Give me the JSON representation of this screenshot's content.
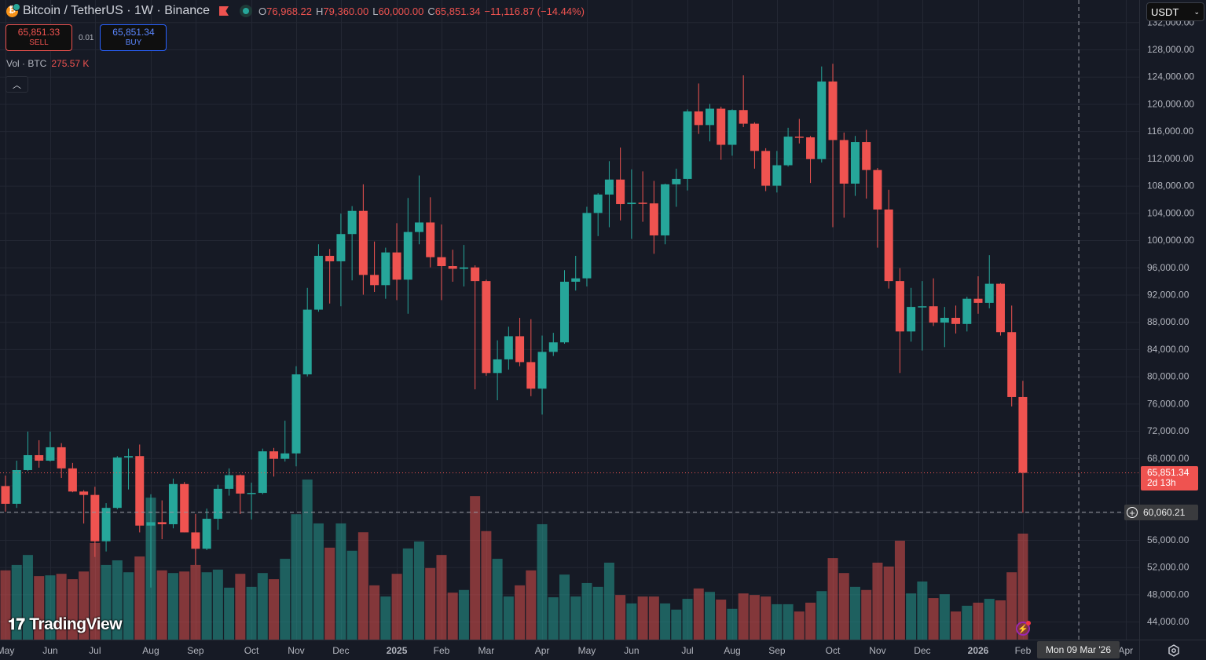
{
  "header": {
    "title": "Bitcoin / TetherUS · 1W · Binance",
    "open_key": "O",
    "open": "76,968.22",
    "high_key": "H",
    "high": "79,360.00",
    "low_key": "L",
    "low": "60,000.00",
    "close_key": "C",
    "close": "65,851.34",
    "change": "−11,116.87 (−14.44%)"
  },
  "trade": {
    "sell_price": "65,851.33",
    "sell_label": "SELL",
    "quantity": "0.01",
    "buy_price": "65,851.34",
    "buy_label": "BUY"
  },
  "volume_legend": {
    "label": "Vol · BTC",
    "value": "275.57 K"
  },
  "currency_select": {
    "value": "USDT"
  },
  "logo": {
    "text": "TradingView"
  },
  "price_labels": {
    "last_price": "65,851.34",
    "countdown": "2d 13h",
    "crosshair_price": "60,060.21",
    "crosshair_date": "Mon 09 Mar '26"
  },
  "colors": {
    "up": "#26a69a",
    "down": "#ef5350",
    "background": "#161a25",
    "grid": "#232733"
  },
  "chart_data": {
    "type": "candlestick",
    "title": "Bitcoin / TetherUS · 1W · Binance",
    "interval": "1W",
    "ylim": [
      42000,
      133000
    ],
    "grid": true,
    "price_ticks": [
      "132,000.00",
      "128,000.00",
      "124,000.00",
      "120,000.00",
      "116,000.00",
      "112,000.00",
      "108,000.00",
      "104,000.00",
      "100,000.00",
      "96,000.00",
      "92,000.00",
      "88,000.00",
      "84,000.00",
      "80,000.00",
      "76,000.00",
      "72,000.00",
      "68,000.00",
      "64,000.00",
      "60,000.00",
      "56,000.00",
      "52,000.00",
      "48,000.00",
      "44,000.00"
    ],
    "time_ticks": [
      {
        "label": "May",
        "index": 0
      },
      {
        "label": "Jun",
        "index": 4
      },
      {
        "label": "Jul",
        "index": 8
      },
      {
        "label": "Aug",
        "index": 13
      },
      {
        "label": "Sep",
        "index": 17
      },
      {
        "label": "Oct",
        "index": 22
      },
      {
        "label": "Nov",
        "index": 26
      },
      {
        "label": "Dec",
        "index": 30
      },
      {
        "label": "2025",
        "index": 35,
        "bold": true
      },
      {
        "label": "Feb",
        "index": 39
      },
      {
        "label": "Mar",
        "index": 43
      },
      {
        "label": "Apr",
        "index": 48
      },
      {
        "label": "May",
        "index": 52
      },
      {
        "label": "Jun",
        "index": 56
      },
      {
        "label": "Jul",
        "index": 61
      },
      {
        "label": "Aug",
        "index": 65
      },
      {
        "label": "Sep",
        "index": 69
      },
      {
        "label": "Oct",
        "index": 74
      },
      {
        "label": "Nov",
        "index": 78
      },
      {
        "label": "Dec",
        "index": 82
      },
      {
        "label": "2026",
        "index": 87,
        "bold": true
      },
      {
        "label": "Feb",
        "index": 91
      },
      {
        "label": "Apr",
        "index": 100.2
      }
    ],
    "crosshair": {
      "index": 96,
      "price": 60060.21
    },
    "last_price": 65851.34,
    "columns": [
      "open",
      "high",
      "low",
      "close",
      "volume_k_btc"
    ],
    "candles": [
      [
        63900,
        65440,
        60140,
        61300,
        180
      ],
      [
        61300,
        67630,
        60700,
        66250,
        194
      ],
      [
        66250,
        71900,
        66100,
        68440,
        220
      ],
      [
        68440,
        70630,
        66600,
        67630,
        165
      ],
      [
        67630,
        71900,
        67500,
        69600,
        167
      ],
      [
        69600,
        70200,
        65100,
        66500,
        171
      ],
      [
        66500,
        67300,
        63000,
        63100,
        157
      ],
      [
        63100,
        63300,
        58400,
        62600,
        177
      ],
      [
        62600,
        63800,
        53500,
        55800,
        251
      ],
      [
        55800,
        61400,
        54300,
        60700,
        194
      ],
      [
        60700,
        68300,
        60500,
        68100,
        206
      ],
      [
        68100,
        69400,
        63400,
        68300,
        175
      ],
      [
        68300,
        70000,
        57100,
        58100,
        216
      ],
      [
        58100,
        62700,
        49000,
        58600,
        369
      ],
      [
        58600,
        61800,
        56100,
        58300,
        180
      ],
      [
        58300,
        65000,
        57700,
        64200,
        173
      ],
      [
        64200,
        64500,
        57100,
        57100,
        177
      ],
      [
        57100,
        59800,
        52300,
        54700,
        194
      ],
      [
        54700,
        60600,
        54500,
        59100,
        175
      ],
      [
        59100,
        64100,
        57500,
        63500,
        182
      ],
      [
        63500,
        66500,
        62500,
        65500,
        135
      ],
      [
        65500,
        65600,
        59800,
        62800,
        171
      ],
      [
        62800,
        64400,
        59000,
        62900,
        137
      ],
      [
        62900,
        69400,
        62700,
        69000,
        173
      ],
      [
        69000,
        69500,
        65300,
        67900,
        157
      ],
      [
        67900,
        73500,
        67500,
        68700,
        210
      ],
      [
        68700,
        81500,
        66800,
        80300,
        326
      ],
      [
        80300,
        93000,
        80000,
        89800,
        416
      ],
      [
        89800,
        99400,
        89500,
        97700,
        302
      ],
      [
        97700,
        98700,
        90700,
        96900,
        239
      ],
      [
        96900,
        103900,
        90300,
        100900,
        302
      ],
      [
        100900,
        105000,
        94100,
        104300,
        231
      ],
      [
        104300,
        108200,
        92000,
        94900,
        279
      ],
      [
        94900,
        99800,
        92400,
        93400,
        141
      ],
      [
        93400,
        98900,
        91400,
        98200,
        112
      ],
      [
        98200,
        102500,
        91200,
        94200,
        171
      ],
      [
        94200,
        106200,
        89200,
        101200,
        237
      ],
      [
        101200,
        109500,
        99400,
        102600,
        255
      ],
      [
        102600,
        106300,
        96000,
        97500,
        186
      ],
      [
        97500,
        102300,
        91200,
        96200,
        220
      ],
      [
        96200,
        98600,
        93900,
        95800,
        122
      ],
      [
        95800,
        99300,
        93200,
        96000,
        129
      ],
      [
        96000,
        96300,
        78100,
        94000,
        373
      ],
      [
        94000,
        94200,
        80100,
        80500,
        282
      ],
      [
        80500,
        85300,
        76500,
        82500,
        210
      ],
      [
        82500,
        87300,
        81000,
        85900,
        112
      ],
      [
        85900,
        88600,
        81500,
        82100,
        141
      ],
      [
        82100,
        88400,
        77100,
        78200,
        180
      ],
      [
        78200,
        86000,
        74400,
        83600,
        300
      ],
      [
        83600,
        86400,
        83000,
        85000,
        110
      ],
      [
        85000,
        95600,
        84800,
        93900,
        169
      ],
      [
        93900,
        97700,
        92600,
        94400,
        112
      ],
      [
        94400,
        104900,
        93200,
        104000,
        147
      ],
      [
        104000,
        106900,
        100600,
        106700,
        137
      ],
      [
        106700,
        111600,
        101900,
        108900,
        200
      ],
      [
        108900,
        113600,
        102900,
        105300,
        116
      ],
      [
        105300,
        110400,
        100200,
        105500,
        94
      ],
      [
        105500,
        110100,
        102700,
        105400,
        112
      ],
      [
        105400,
        108700,
        98000,
        100700,
        112
      ],
      [
        100700,
        108300,
        99400,
        108200,
        94
      ],
      [
        108200,
        110500,
        104900,
        109000,
        78
      ],
      [
        109000,
        119200,
        107300,
        118900,
        106
      ],
      [
        118900,
        123000,
        115600,
        116900,
        133
      ],
      [
        116900,
        120000,
        114500,
        119300,
        124
      ],
      [
        119300,
        119600,
        111800,
        114000,
        104
      ],
      [
        114000,
        119200,
        112400,
        119100,
        80
      ],
      [
        119100,
        124200,
        116600,
        117100,
        120
      ],
      [
        117100,
        117300,
        110500,
        113100,
        116
      ],
      [
        113100,
        113500,
        107200,
        108000,
        112
      ],
      [
        108000,
        113100,
        107000,
        111000,
        92
      ],
      [
        111000,
        116500,
        110800,
        115200,
        92
      ],
      [
        115200,
        117800,
        114200,
        115100,
        73
      ],
      [
        115100,
        115300,
        108400,
        111900,
        96
      ],
      [
        111900,
        125500,
        111400,
        123300,
        126
      ],
      [
        123300,
        125900,
        101900,
        114700,
        212
      ],
      [
        114700,
        115800,
        103300,
        108300,
        173
      ],
      [
        108300,
        115300,
        106500,
        114400,
        137
      ],
      [
        114400,
        116200,
        106100,
        110300,
        129
      ],
      [
        110300,
        110600,
        98900,
        104500,
        200
      ],
      [
        104500,
        107400,
        92900,
        94000,
        190
      ],
      [
        94000,
        95900,
        80500,
        86600,
        257
      ],
      [
        86600,
        93000,
        85100,
        90200,
        120
      ],
      [
        90200,
        94000,
        83800,
        90300,
        151
      ],
      [
        90300,
        94400,
        87400,
        87900,
        108
      ],
      [
        87900,
        90200,
        84300,
        88600,
        118
      ],
      [
        88600,
        90400,
        86300,
        87700,
        73
      ],
      [
        87700,
        91700,
        86600,
        91400,
        88
      ],
      [
        91400,
        94700,
        89200,
        90800,
        96
      ],
      [
        90800,
        97800,
        90000,
        93600,
        106
      ],
      [
        93600,
        93700,
        86000,
        86500,
        102
      ],
      [
        86500,
        90400,
        75600,
        76968.22,
        175
      ],
      [
        76968.22,
        79360,
        60000,
        65851.34,
        275.57
      ]
    ]
  }
}
